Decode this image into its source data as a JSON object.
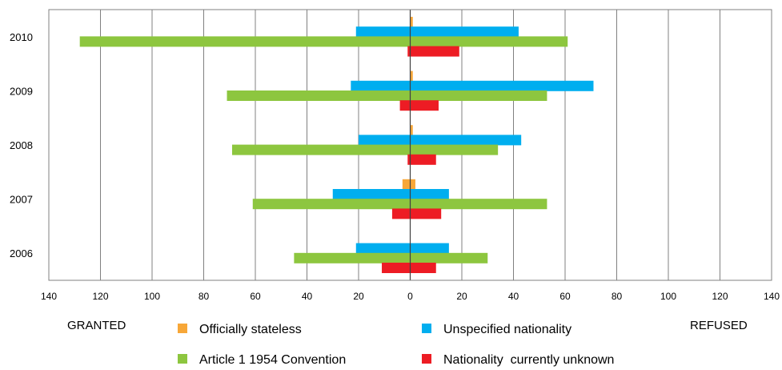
{
  "chart_data": {
    "type": "bar",
    "orientation": "horizontal-diverging",
    "categories": [
      "2010",
      "2009",
      "2008",
      "2007",
      "2006"
    ],
    "side_labels": {
      "left": "GRANTED",
      "right": "REFUSED"
    },
    "xlim": [
      -140,
      140
    ],
    "x_ticks": [
      -140,
      -120,
      -100,
      -80,
      -60,
      -40,
      -20,
      0,
      20,
      40,
      60,
      80,
      100,
      120,
      140
    ],
    "x_tick_labels": [
      "140",
      "120",
      "100",
      "80",
      "60",
      "40",
      "20",
      "0",
      "20",
      "40",
      "60",
      "80",
      "100",
      "120",
      "140"
    ],
    "grid": "vertical",
    "legend_position": "bottom",
    "series": [
      {
        "name": "Officially stateless",
        "color": "#F7A738",
        "granted": [
          0,
          0,
          0,
          3,
          0
        ],
        "refused": [
          1,
          1,
          1,
          2,
          0
        ]
      },
      {
        "name": "Unspecified nationality",
        "color": "#00AEEF",
        "granted": [
          21,
          23,
          20,
          30,
          21
        ],
        "refused": [
          42,
          71,
          43,
          15,
          15
        ]
      },
      {
        "name": "Article 1 1954 Convention",
        "color": "#8DC63F",
        "granted": [
          128,
          71,
          69,
          61,
          45
        ],
        "refused": [
          61,
          53,
          34,
          53,
          30
        ]
      },
      {
        "name": "Nationality  currently unknown",
        "color": "#ED1C24",
        "granted": [
          1,
          4,
          1,
          7,
          11
        ],
        "refused": [
          19,
          11,
          10,
          12,
          10
        ]
      }
    ]
  }
}
